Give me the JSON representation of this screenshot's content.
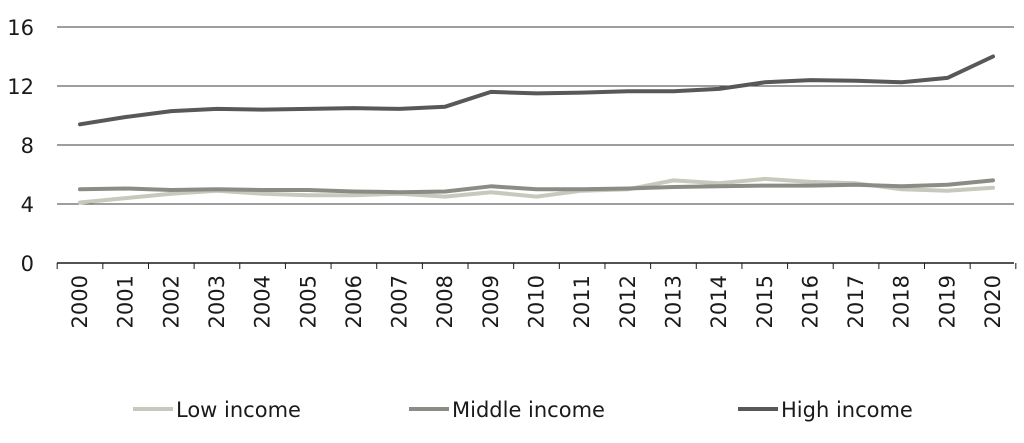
{
  "chart_data": {
    "type": "line",
    "title": "",
    "xlabel": "",
    "ylabel": "",
    "categories": [
      "2000",
      "2001",
      "2002",
      "2003",
      "2004",
      "2005",
      "2006",
      "2007",
      "2008",
      "2009",
      "2010",
      "2011",
      "2012",
      "2013",
      "2014",
      "2015",
      "2016",
      "2017",
      "2018",
      "2019",
      "2020"
    ],
    "ylim": [
      0,
      16
    ],
    "yticks": [
      0,
      4,
      8,
      12,
      16
    ],
    "grid": true,
    "legend_position": "bottom",
    "series": [
      {
        "name": "Low income",
        "color": "#c8c8bc",
        "values": [
          4.1,
          4.4,
          4.7,
          4.9,
          4.7,
          4.6,
          4.6,
          4.7,
          4.5,
          4.8,
          4.5,
          4.9,
          5.0,
          5.6,
          5.4,
          5.7,
          5.5,
          5.4,
          5.0,
          4.9,
          5.1
        ]
      },
      {
        "name": "Middle income",
        "color": "#8c8c87",
        "values": [
          5.0,
          5.05,
          4.95,
          5.0,
          4.95,
          4.95,
          4.85,
          4.8,
          4.85,
          5.2,
          5.0,
          5.0,
          5.05,
          5.15,
          5.2,
          5.25,
          5.25,
          5.3,
          5.2,
          5.3,
          5.6
        ]
      },
      {
        "name": "High income",
        "color": "#58585a",
        "values": [
          9.4,
          9.9,
          10.3,
          10.45,
          10.4,
          10.45,
          10.5,
          10.45,
          10.6,
          11.6,
          11.5,
          11.55,
          11.65,
          11.65,
          11.8,
          12.25,
          12.4,
          12.35,
          12.25,
          12.55,
          14.0
        ]
      }
    ]
  }
}
